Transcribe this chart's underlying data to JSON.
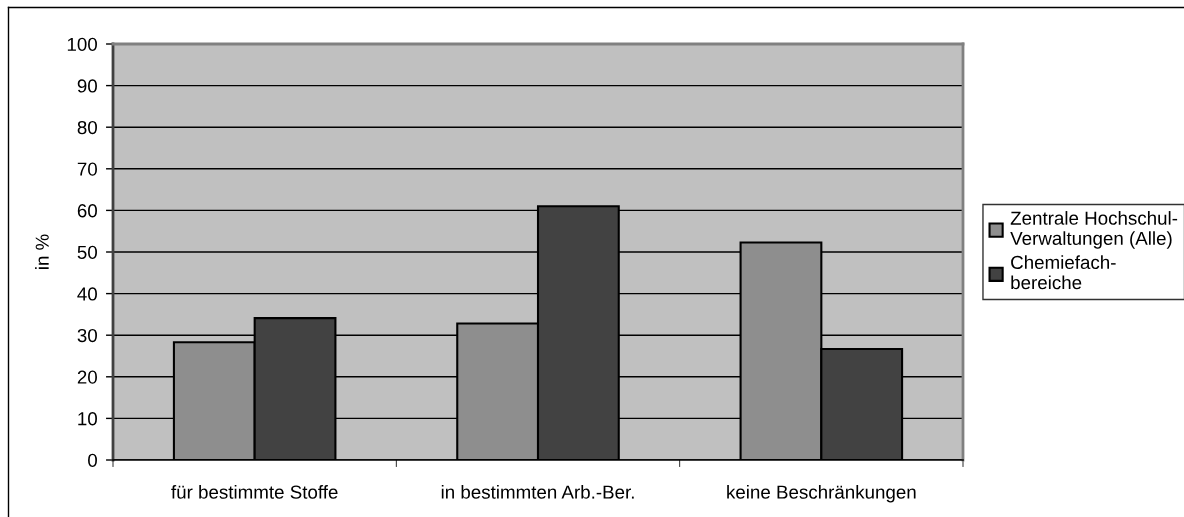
{
  "chart_data": {
    "type": "bar",
    "categories": [
      "für bestimmte Stoffe",
      "in bestimmten Arb.-Ber.",
      "keine Beschränkungen"
    ],
    "series": [
      {
        "name": "Zentrale Hochschul-\nVerwaltungen (Alle)",
        "color": "#8e8e8e",
        "values": [
          28.3,
          32.8,
          52.3
        ]
      },
      {
        "name": "Chemiefach-\nbereiche",
        "color": "#424242",
        "values": [
          34.1,
          61,
          26.7
        ]
      }
    ],
    "ylabel": "in %",
    "ylim": [
      0,
      100
    ],
    "yticks": [
      0,
      10,
      20,
      30,
      40,
      50,
      60,
      70,
      80,
      90,
      100
    ],
    "grid": "y",
    "legend": "right"
  }
}
